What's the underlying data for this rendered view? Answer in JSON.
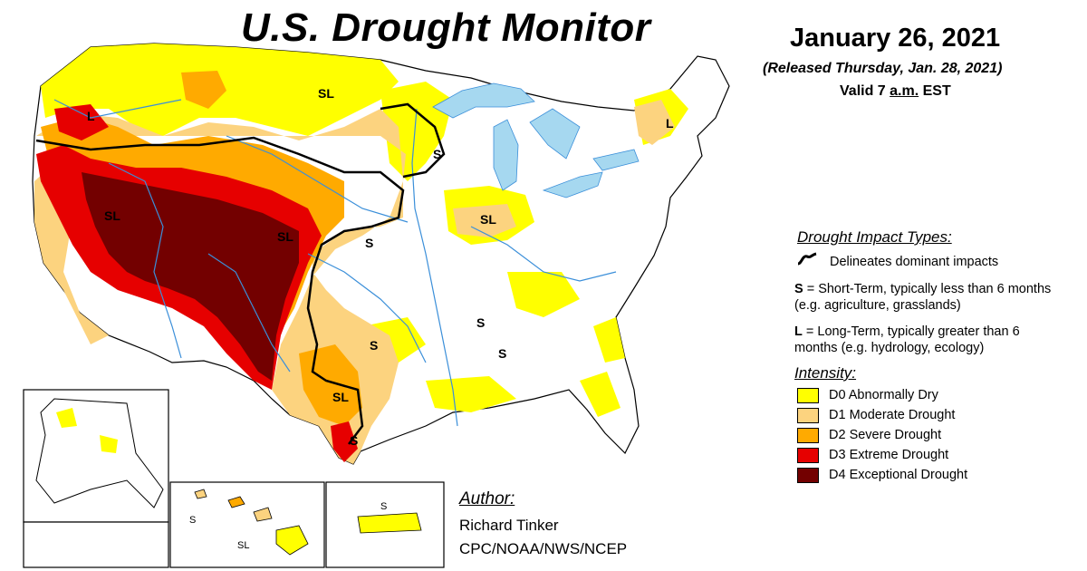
{
  "header": {
    "title": "U.S. Drought Monitor",
    "date": "January 26, 2021",
    "released": "(Released Thursday, Jan. 28, 2021)",
    "valid_prefix": "Valid 7 ",
    "valid_am": "a.m.",
    "valid_suffix": " EST"
  },
  "impact_types": {
    "heading": "Drought Impact Types:",
    "delineates": "Delineates dominant impacts",
    "short_term_code": "S",
    "short_term_text": " = Short-Term, typically less than 6 months (e.g. agriculture, grasslands)",
    "long_term_code": "L",
    "long_term_text": " = Long-Term, typically greater than 6 months (e.g. hydrology, ecology)"
  },
  "intensity": {
    "heading": "Intensity:",
    "levels": [
      {
        "label": "D0 Abnormally Dry",
        "color": "#ffff00"
      },
      {
        "label": "D1 Moderate Drought",
        "color": "#fcd37f"
      },
      {
        "label": "D2 Severe Drought",
        "color": "#ffaa00"
      },
      {
        "label": "D3 Extreme Drought",
        "color": "#e60000"
      },
      {
        "label": "D4 Exceptional Drought",
        "color": "#730000"
      }
    ]
  },
  "author": {
    "heading": "Author:",
    "name": "Richard Tinker",
    "org": "CPC/NOAA/NWS/NCEP"
  },
  "map_labels": {
    "l_oregon": "L",
    "sl_dakotas": "SL",
    "s_minnesota": "S",
    "sl_nevada": "SL",
    "sl_colorado": "SL",
    "s_kansas": "S",
    "sl_illinois": "SL",
    "l_new_england": "L",
    "s_louisiana": "S",
    "s_mississippi": "S",
    "s_oklahoma": "S",
    "sl_texas": "SL",
    "s_south_texas": "S"
  },
  "inset_labels": {
    "hawaii_s": "S",
    "hawaii_sl": "SL",
    "puerto_rico_s": "S"
  },
  "colors": {
    "water": "#a6d8f0",
    "river": "#3b8fd9",
    "background": "#ffffff"
  }
}
